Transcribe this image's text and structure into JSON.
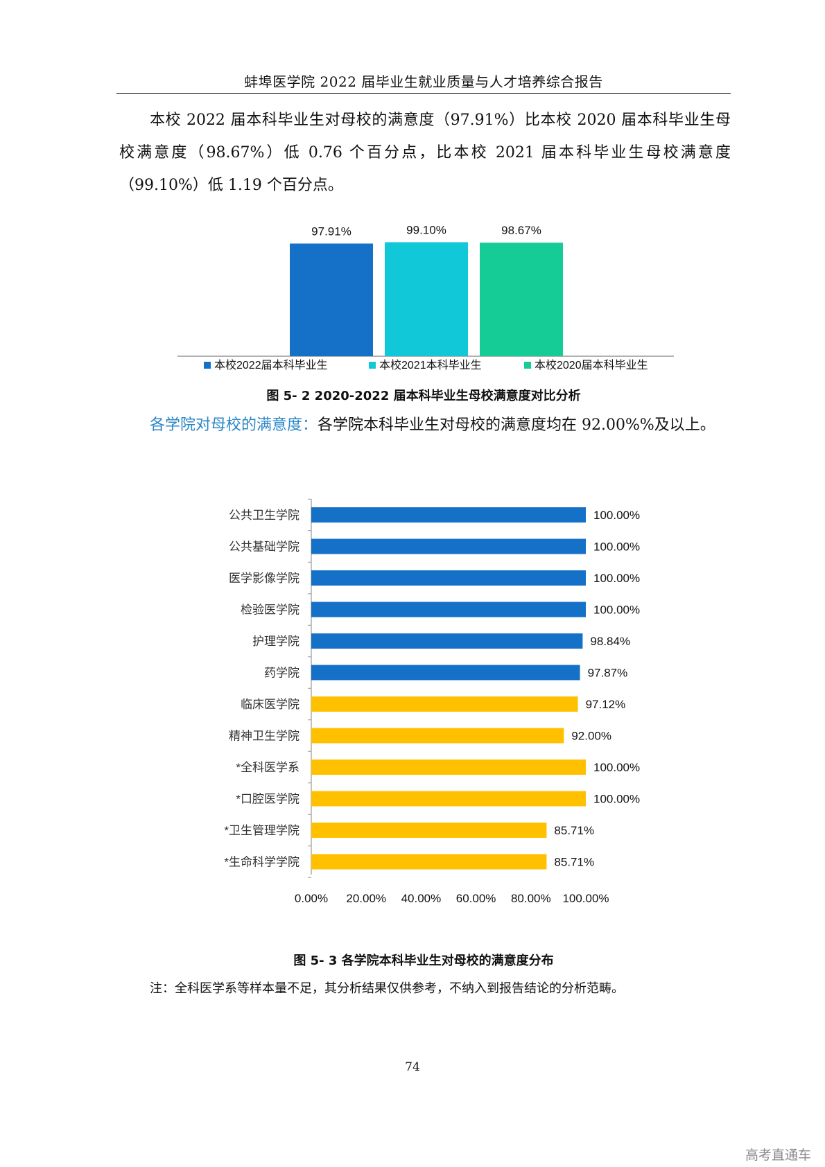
{
  "header": {
    "title": "蚌埠医学院 2022 届毕业生就业质量与人才培养综合报告"
  },
  "paragraph1": "本校 2022 届本科毕业生对母校的满意度（97.91%）比本校 2020 届本科毕业生母校满意度（98.67%）低 0.76 个百分点，比本校 2021 届本科毕业生母校满意度（99.10%）低 1.19 个百分点。",
  "paragraph2": {
    "highlight": "各学院对母校的满意度：",
    "text": "各学院本科毕业生对母校的满意度均在 92.00%%及以上。"
  },
  "chart_data": [
    {
      "type": "bar",
      "title": "图 5- 2 2020-2022 届本科毕业生母校满意度对比分析",
      "ylim": [
        0,
        100
      ],
      "series": [
        {
          "name": "本校2022届本科毕业生",
          "value": 97.91,
          "label": "97.91%",
          "color": "#1570c8"
        },
        {
          "name": "本校2021本科毕业生",
          "value": 99.1,
          "label": "99.10%",
          "color": "#11c8d8"
        },
        {
          "name": "本校2020届本科毕业生",
          "value": 98.67,
          "label": "98.67%",
          "color": "#16cc96"
        }
      ],
      "legend": "bottom"
    },
    {
      "type": "bar",
      "orientation": "horizontal",
      "title": "图 5- 3 各学院本科毕业生对母校的满意度分布",
      "xlim": [
        0,
        100
      ],
      "xticks": [
        "0.00%",
        "20.00%",
        "40.00%",
        "60.00%",
        "80.00%",
        "100.00%"
      ],
      "colors": {
        "primary": "#1570c8",
        "secondary": "#ffc000"
      },
      "categories": [
        "公共卫生学院",
        "公共基础学院",
        "医学影像学院",
        "检验医学院",
        "护理学院",
        "药学院",
        "临床医学院",
        "精神卫生学院",
        "*全科医学系",
        "*口腔医学院",
        "*卫生管理学院",
        "*生命科学学院"
      ],
      "values": [
        100,
        100,
        100,
        100,
        98.84,
        97.87,
        97.12,
        92.0,
        100,
        100,
        85.71,
        85.71
      ],
      "labels": [
        "100.00%",
        "100.00%",
        "100.00%",
        "100.00%",
        "98.84%",
        "97.87%",
        "97.12%",
        "92.00%",
        "100.00%",
        "100.00%",
        "85.71%",
        "85.71%"
      ],
      "group": [
        "primary",
        "primary",
        "primary",
        "primary",
        "primary",
        "primary",
        "secondary",
        "secondary",
        "secondary",
        "secondary",
        "secondary",
        "secondary"
      ]
    }
  ],
  "note": "注：全科医学系等样本量不足，其分析结果仅供参考，不纳入到报告结论的分析范畴。",
  "page_number": "74",
  "watermark": "高考直通车"
}
